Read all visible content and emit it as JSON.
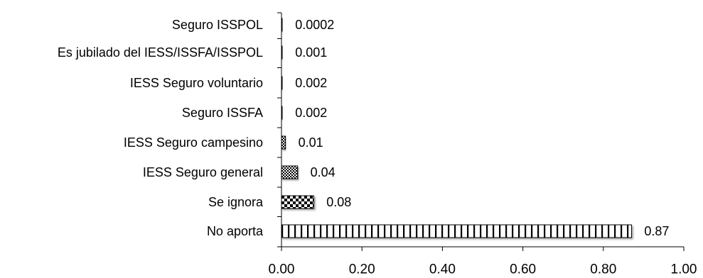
{
  "chart_data": {
    "type": "bar",
    "orientation": "horizontal",
    "categories": [
      "Seguro ISSPOL",
      "Es jubilado del IESS/ISSFA/ISSPOL",
      "IESS Seguro voluntario",
      "Seguro ISSFA",
      "IESS Seguro campesino",
      "IESS Seguro general",
      "Se ignora",
      "No aporta"
    ],
    "values": [
      0.0002,
      0.001,
      0.002,
      0.002,
      0.01,
      0.04,
      0.08,
      0.87
    ],
    "data_labels": [
      "0.0002",
      "0.001",
      "0.002",
      "0.002",
      "0.01",
      "0.04",
      "0.08",
      "0.87"
    ],
    "xlim": [
      0,
      1.0
    ],
    "x_ticks": [
      "0.00",
      "0.20",
      "0.40",
      "0.60",
      "0.80",
      "1.00"
    ],
    "title": "",
    "xlabel": "",
    "ylabel": "",
    "grid": false,
    "legend": "none",
    "bar_patterns": [
      "vertical-lines",
      "vertical-lines",
      "vertical-lines",
      "vertical-lines",
      "checker-small",
      "checker-small",
      "checker-large",
      "vertical-lines"
    ],
    "colors": {
      "bar_outline": "#000000",
      "pattern_dark": "#000000",
      "pattern_light": "#ffffff",
      "axis": "#000000"
    }
  }
}
